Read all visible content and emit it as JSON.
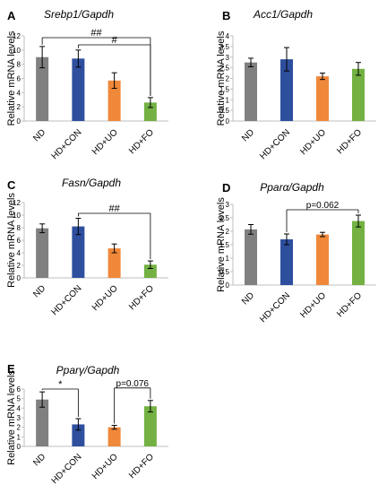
{
  "colors": {
    "ND": "#808080",
    "HD+CON": "#2e4f9e",
    "HD+UO": "#f0883a",
    "HD+FO": "#73b143",
    "axis": "#bfbfbf",
    "annotation": "#000000"
  },
  "chart_data": [
    {
      "panel": "A",
      "type": "bar",
      "title": "Srebp1/Gapdh",
      "ylabel": "Relative mRNA levels",
      "categories": [
        "ND",
        "HD+CON",
        "HD+UO",
        "HD+FO"
      ],
      "values": [
        9.0,
        8.8,
        5.7,
        2.6
      ],
      "errors": [
        1.5,
        1.2,
        1.1,
        0.7
      ],
      "ylim": [
        0,
        12
      ],
      "yticks": [
        "0",
        "2",
        "4",
        "6",
        "8",
        "10",
        "12"
      ],
      "annotations": [
        {
          "from": 0,
          "to": 3,
          "label": "##"
        },
        {
          "from": 1,
          "to": 3,
          "label": "#"
        }
      ]
    },
    {
      "panel": "B",
      "type": "bar",
      "title": "Acc1/Gapdh",
      "ylabel": "Relative mRNA levels",
      "categories": [
        "ND",
        "HD+CON",
        "HD+UO",
        "HD+FO"
      ],
      "values": [
        2.75,
        2.9,
        2.1,
        2.45
      ],
      "errors": [
        0.2,
        0.55,
        0.15,
        0.3
      ],
      "ylim": [
        0,
        4
      ],
      "yticks": [
        "0",
        "0.5",
        "1",
        "1.5",
        "2",
        "2.5",
        "3",
        "3.5",
        "4"
      ],
      "annotations": []
    },
    {
      "panel": "C",
      "type": "bar",
      "title": "Fasn/Gapdh",
      "ylabel": "Relative mRNA levels",
      "categories": [
        "ND",
        "HD+CON",
        "HD+UO",
        "HD+FO"
      ],
      "values": [
        7.9,
        8.2,
        4.7,
        2.1
      ],
      "errors": [
        0.7,
        1.3,
        0.7,
        0.6
      ],
      "ylim": [
        0,
        12
      ],
      "yticks": [
        "0",
        "2",
        "4",
        "6",
        "8",
        "10",
        "12"
      ],
      "annotations": [
        {
          "from": 1,
          "to": 3,
          "label": "##"
        }
      ]
    },
    {
      "panel": "D",
      "type": "bar",
      "title": "Pparα/Gapdh",
      "ylabel": "Relative mRNA levels",
      "categories": [
        "ND",
        "HD+CON",
        "HD+UO",
        "HD+FO"
      ],
      "values": [
        2.07,
        1.7,
        1.88,
        2.38
      ],
      "errors": [
        0.18,
        0.2,
        0.08,
        0.22
      ],
      "ylim": [
        0,
        3
      ],
      "yticks": [
        "0",
        "0.5",
        "1",
        "1.5",
        "2",
        "2.5",
        "3"
      ],
      "annotations": [
        {
          "from": 1,
          "to": 3,
          "label": "p=0.062"
        }
      ]
    },
    {
      "panel": "E",
      "type": "bar",
      "title": "Pparγ/Gapdh",
      "ylabel": "Relative mRNA levels",
      "categories": [
        "ND",
        "HD+CON",
        "HD+UO",
        "HD+FO"
      ],
      "values": [
        4.9,
        2.3,
        2.0,
        4.2
      ],
      "errors": [
        0.8,
        0.6,
        0.2,
        0.6
      ],
      "ylim": [
        0,
        6
      ],
      "yticks": [
        "0",
        "1",
        "2",
        "3",
        "4",
        "5",
        "6"
      ],
      "annotations": [
        {
          "from": 0,
          "to": 1,
          "label": "*"
        },
        {
          "from": 2,
          "to": 3,
          "label": "p=0.076"
        }
      ]
    }
  ]
}
